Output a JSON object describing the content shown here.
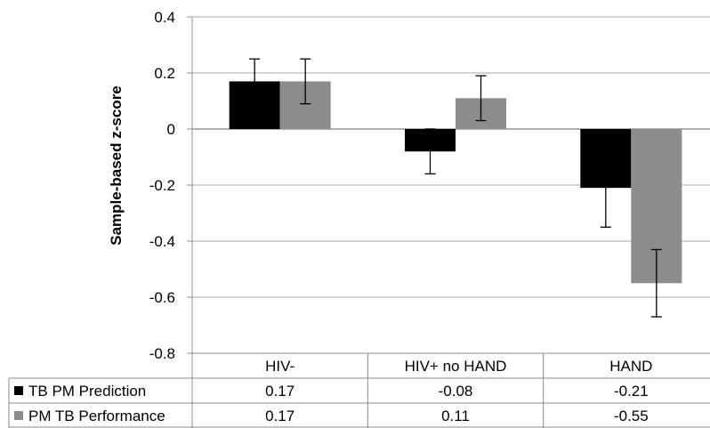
{
  "chart_data": {
    "type": "bar",
    "title": "",
    "xlabel": "",
    "ylabel": "Sample-based z-score",
    "ylim": [
      -0.8,
      0.4
    ],
    "yticks": [
      "0.4",
      "0.2",
      "0",
      "-0.2",
      "-0.4",
      "-0.6",
      "-0.8"
    ],
    "ytick_values": [
      0.4,
      0.2,
      0,
      -0.2,
      -0.4,
      -0.6,
      -0.8
    ],
    "grid": true,
    "categories": [
      "HIV-",
      "HIV+ no HAND",
      "HAND"
    ],
    "series": [
      {
        "name": "TB PM Prediction",
        "color": "#000000",
        "values": [
          0.17,
          -0.08,
          -0.21
        ],
        "labels": [
          "0.17",
          "-0.08",
          "-0.21"
        ],
        "error_low": [
          0.09,
          -0.16,
          -0.35
        ],
        "error_high": [
          0.25,
          0.0,
          -0.07
        ]
      },
      {
        "name": "PM TB Performance",
        "color": "#8c8c8c",
        "values": [
          0.17,
          0.11,
          -0.55
        ],
        "labels": [
          "0.17",
          "0.11",
          "-0.55"
        ],
        "error_low": [
          0.09,
          0.03,
          -0.67
        ],
        "error_high": [
          0.25,
          0.19,
          -0.43
        ]
      }
    ],
    "legend_position": "data-table"
  }
}
